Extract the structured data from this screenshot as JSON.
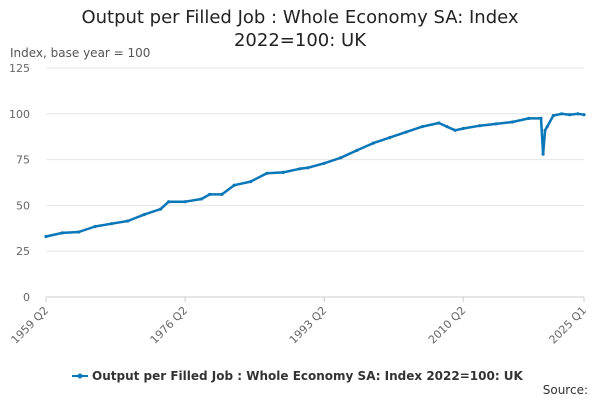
{
  "chart_data": {
    "type": "line",
    "title": "Output per Filled Job : Whole Economy SA: Index\n2022=100: UK",
    "ylabel": "Index, base year = 100",
    "xlabel": "",
    "ylim": [
      0,
      125
    ],
    "yticks": [
      "0",
      "25",
      "50",
      "75",
      "100",
      "125"
    ],
    "xticks": [
      "1959 Q2",
      "1976 Q2",
      "1993 Q2",
      "2010 Q2",
      "2025 Q1"
    ],
    "grid": true,
    "legend_position": "bottom",
    "source_label": "Source:",
    "series": [
      {
        "name": "Output per Filled Job : Whole Economy SA: Index 2022=100: UK",
        "color": "#0a77b8",
        "x": [
          "1959 Q2",
          "1961 Q2",
          "1963 Q2",
          "1965 Q2",
          "1967 Q2",
          "1969 Q2",
          "1971 Q2",
          "1973 Q2",
          "1974 Q2",
          "1976 Q2",
          "1978 Q2",
          "1979 Q2",
          "1980 Q4",
          "1982 Q2",
          "1984 Q2",
          "1986 Q2",
          "1988 Q2",
          "1990 Q2",
          "1991 Q2",
          "1993 Q2",
          "1995 Q2",
          "1997 Q2",
          "1999 Q2",
          "2001 Q2",
          "2003 Q2",
          "2005 Q2",
          "2007 Q2",
          "2008 Q2",
          "2009 Q2",
          "2010 Q2",
          "2012 Q2",
          "2014 Q2",
          "2016 Q2",
          "2018 Q2",
          "2019 Q4",
          "2020 Q1",
          "2020 Q2",
          "2020 Q3",
          "2021 Q2",
          "2022 Q2",
          "2023 Q2",
          "2024 Q2",
          "2025 Q1"
        ],
        "values": [
          33,
          35,
          35.5,
          38.5,
          40,
          41.5,
          45,
          48,
          52,
          52,
          53.5,
          56,
          56,
          61,
          63,
          67.5,
          68,
          70,
          70.5,
          73,
          76,
          80,
          84,
          87,
          90,
          93,
          95,
          93,
          91,
          92,
          93.5,
          94.5,
          95.5,
          97.5,
          97.5,
          78,
          91,
          93,
          99,
          100,
          99.5,
          100,
          99.5
        ]
      }
    ]
  }
}
